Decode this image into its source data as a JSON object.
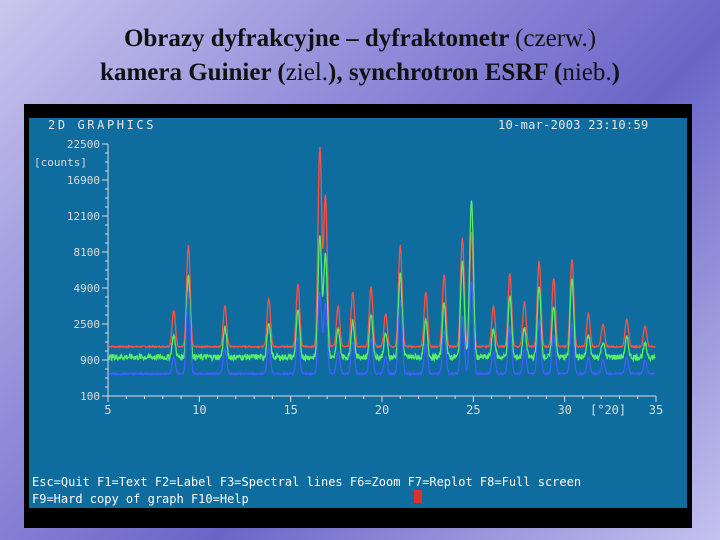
{
  "slide": {
    "title_line1_bold": "Obrazy dyfrakcyjne – dyfraktometr",
    "title_line1_light": "(czerw.)",
    "title_line2_a": "kamera  Guinier (",
    "title_line2_b": "ziel.",
    "title_line2_c": "), synchrotron ESRF (",
    "title_line2_d": "nieb.",
    "title_line2_e": ")"
  },
  "screen": {
    "header_left": "2D GRAPHICS",
    "header_right": "10-mar-2003 23:10:59",
    "footer_line1": "Esc=Quit F1=Text F2=Label F3=Spectral lines F6=Zoom F7=Replot F8=Full screen",
    "footer_line2": "F9=Hard copy of graph F10=Help",
    "colors": {
      "background": "#0f6c9e",
      "frame": "#000000",
      "axis": "#dcdcdc",
      "series_red": "#ff5040",
      "series_green": "#55ee66",
      "series_blue": "#4060ff"
    }
  },
  "chart_data": {
    "type": "line",
    "ylabel": "[counts]",
    "xlabel": "[°2Θ]",
    "xlim": [
      5,
      35
    ],
    "x_ticks": [
      5,
      10,
      15,
      20,
      25,
      30,
      35
    ],
    "y_ticks": [
      100,
      900,
      2500,
      4900,
      8100,
      12100,
      16900,
      22500
    ],
    "y_tick_labels": [
      "100",
      "900",
      "2500",
      "4900",
      "8100",
      "12100",
      "16900",
      "22500"
    ],
    "y_scale": "sqrt",
    "series": [
      {
        "color": "#ff5040",
        "baseline": 1400,
        "peaks": [
          [
            8.6,
            3300
          ],
          [
            9.4,
            8800
          ],
          [
            11.4,
            3600
          ],
          [
            13.8,
            4100
          ],
          [
            15.4,
            5200
          ],
          [
            16.6,
            22000
          ],
          [
            16.9,
            14800
          ],
          [
            17.6,
            3600
          ],
          [
            18.4,
            4600
          ],
          [
            19.4,
            5000
          ],
          [
            20.2,
            3100
          ],
          [
            21.0,
            8800
          ],
          [
            22.4,
            4600
          ],
          [
            23.4,
            6000
          ],
          [
            24.4,
            9600
          ],
          [
            24.9,
            10200
          ],
          [
            26.1,
            3600
          ],
          [
            27.0,
            6100
          ],
          [
            27.8,
            3900
          ],
          [
            28.6,
            7200
          ],
          [
            29.4,
            5700
          ],
          [
            30.4,
            7400
          ],
          [
            31.3,
            3100
          ],
          [
            32.1,
            2500
          ],
          [
            33.4,
            2800
          ],
          [
            34.4,
            2400
          ]
        ]
      },
      {
        "color": "#55ee66",
        "baseline": 1000,
        "peaks": [
          [
            8.6,
            1900
          ],
          [
            9.4,
            6000
          ],
          [
            11.4,
            2300
          ],
          [
            13.8,
            2500
          ],
          [
            15.4,
            3300
          ],
          [
            16.6,
            9800
          ],
          [
            16.9,
            8000
          ],
          [
            17.6,
            2200
          ],
          [
            18.4,
            2700
          ],
          [
            19.4,
            3100
          ],
          [
            20.2,
            2000
          ],
          [
            21.0,
            6100
          ],
          [
            22.4,
            2700
          ],
          [
            23.4,
            3800
          ],
          [
            24.4,
            7200
          ],
          [
            24.9,
            14000
          ],
          [
            26.1,
            2200
          ],
          [
            27.0,
            4300
          ],
          [
            27.8,
            2300
          ],
          [
            28.6,
            5000
          ],
          [
            29.4,
            3600
          ],
          [
            30.4,
            5600
          ],
          [
            31.3,
            1900
          ],
          [
            32.1,
            1600
          ],
          [
            33.4,
            1800
          ],
          [
            34.4,
            1500
          ]
        ]
      },
      {
        "color": "#4060ff",
        "baseline": 500,
        "peaks": [
          [
            8.6,
            1000
          ],
          [
            9.4,
            4700
          ],
          [
            11.4,
            1300
          ],
          [
            13.8,
            1400
          ],
          [
            15.4,
            1800
          ],
          [
            16.6,
            4600
          ],
          [
            16.9,
            3800
          ],
          [
            17.6,
            1200
          ],
          [
            18.4,
            1600
          ],
          [
            19.4,
            1800
          ],
          [
            20.2,
            1000
          ],
          [
            21.0,
            4000
          ],
          [
            22.4,
            1500
          ],
          [
            23.4,
            2100
          ],
          [
            24.4,
            3000
          ],
          [
            24.9,
            5400
          ],
          [
            26.1,
            1200
          ],
          [
            27.0,
            2300
          ],
          [
            27.8,
            1300
          ],
          [
            28.6,
            2700
          ],
          [
            29.4,
            1900
          ],
          [
            30.4,
            2500
          ],
          [
            31.3,
            1000
          ],
          [
            32.1,
            900
          ],
          [
            33.4,
            1000
          ],
          [
            34.4,
            900
          ]
        ]
      }
    ]
  }
}
